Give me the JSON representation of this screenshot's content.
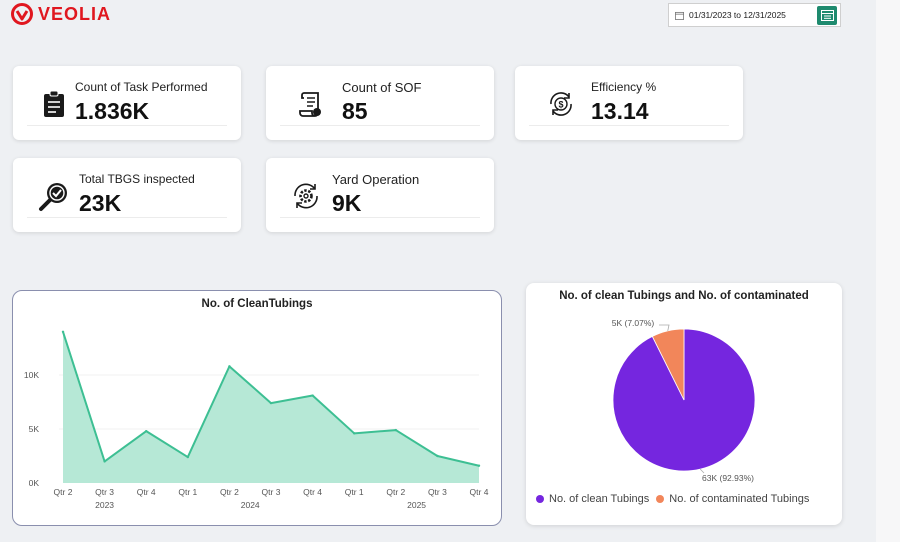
{
  "brand": {
    "name": "VEOLIA",
    "color": "#e0171f"
  },
  "date_range": {
    "value": "01/31/2023 to 12/31/2025"
  },
  "kpis": [
    {
      "label": "Count of Task Performed",
      "value": "1.836K",
      "icon": "clipboard-icon"
    },
    {
      "label": "Count of SOF",
      "value": "85",
      "icon": "scroll-icon"
    },
    {
      "label": "Efficiency %",
      "value": "13.14",
      "icon": "dollar-cycle-icon"
    },
    {
      "label": "Total TBGS inspected",
      "value": "23K",
      "icon": "magnifier-check-icon"
    },
    {
      "label": "Yard Operation",
      "value": "9K",
      "icon": "gear-cycle-icon"
    }
  ],
  "chart_data": [
    {
      "type": "area",
      "title": "No. of CleanTubings",
      "categories": [
        "Qtr 2",
        "Qtr 3",
        "Qtr 4",
        "Qtr 1",
        "Qtr 2",
        "Qtr 3",
        "Qtr 4",
        "Qtr 1",
        "Qtr 2",
        "Qtr 3",
        "Qtr 4"
      ],
      "years": [
        {
          "label": "2023",
          "start": 0,
          "end": 2
        },
        {
          "label": "2024",
          "start": 3,
          "end": 6
        },
        {
          "label": "2025",
          "start": 7,
          "end": 10
        }
      ],
      "series": [
        {
          "values": [
            14000,
            2000,
            4800,
            2400,
            10800,
            7400,
            8100,
            4600,
            4900,
            2500,
            1600
          ]
        }
      ],
      "yticks": [
        {
          "value": 0,
          "label": "0K"
        },
        {
          "value": 5000,
          "label": "5K"
        },
        {
          "value": 10000,
          "label": "10K"
        }
      ],
      "ylim": [
        0,
        15000
      ],
      "colors": {
        "line": "#3dbf93",
        "fill": "#b6e8d6"
      }
    },
    {
      "type": "pie",
      "title": "No. of clean Tubings and No. of contaminated",
      "slices": [
        {
          "name": "No. of clean Tubings",
          "value": 63000,
          "label": "63K (92.93%)",
          "color": "#7526df"
        },
        {
          "name": "No. of contaminated Tubings",
          "value": 5000,
          "label": "5K (7.07%)",
          "color": "#f2865a"
        }
      ]
    }
  ]
}
